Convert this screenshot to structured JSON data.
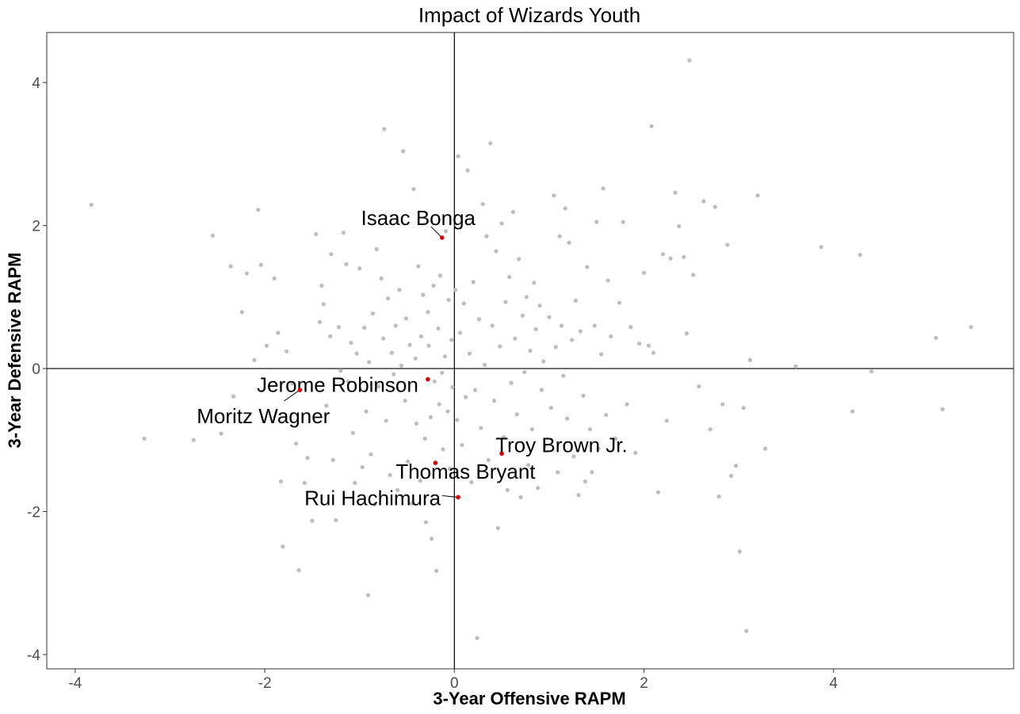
{
  "chart_data": {
    "type": "scatter",
    "title": "Impact of Wizards Youth",
    "xlabel": "3-Year Offensive RAPM",
    "ylabel": "3-Year Defensive RAPM",
    "xlim": [
      -4.3,
      5.9
    ],
    "ylim": [
      -4.2,
      4.7
    ],
    "x_ticks": [
      -4,
      -2,
      0,
      2,
      4
    ],
    "y_ticks": [
      -4,
      -2,
      0,
      2,
      4
    ],
    "x_tick_labels": [
      "-4",
      "-2",
      "0",
      "2",
      "4"
    ],
    "y_tick_labels": [
      "-4",
      "-2",
      "0",
      "2",
      "4"
    ],
    "grid": false,
    "reference_lines": {
      "x": 0,
      "y": 0
    },
    "colors": {
      "background_points": "#bdbdbd",
      "highlight_points": "#e00000",
      "axes": "#000000"
    },
    "highlighted": [
      {
        "name": "Isaac Bonga",
        "x": -0.13,
        "y": 1.83
      },
      {
        "name": "Jerome Robinson",
        "x": -0.28,
        "y": -0.15
      },
      {
        "name": "Moritz Wagner",
        "x": -1.63,
        "y": -0.3
      },
      {
        "name": "Troy Brown Jr.",
        "x": 0.5,
        "y": -1.19
      },
      {
        "name": "Thomas Bryant",
        "x": -0.2,
        "y": -1.32
      },
      {
        "name": "Rui Hachimura",
        "x": 0.04,
        "y": -1.8
      }
    ],
    "points": [
      [
        -3.83,
        2.29
      ],
      [
        -3.27,
        -0.98
      ],
      [
        -2.75,
        -1.0
      ],
      [
        -2.55,
        1.86
      ],
      [
        -2.46,
        -0.91
      ],
      [
        -2.36,
        1.43
      ],
      [
        -2.33,
        -0.39
      ],
      [
        -2.24,
        0.79
      ],
      [
        -2.19,
        1.33
      ],
      [
        -2.11,
        0.12
      ],
      [
        -2.07,
        2.22
      ],
      [
        -2.04,
        1.45
      ],
      [
        -1.98,
        0.32
      ],
      [
        -1.9,
        1.26
      ],
      [
        -1.86,
        0.5
      ],
      [
        -1.83,
        -1.58
      ],
      [
        -1.81,
        -2.49
      ],
      [
        -1.77,
        0.24
      ],
      [
        -1.71,
        -0.21
      ],
      [
        -1.67,
        -1.05
      ],
      [
        -1.64,
        -2.82
      ],
      [
        -1.58,
        -1.6
      ],
      [
        -1.55,
        -1.25
      ],
      [
        -1.5,
        -2.13
      ],
      [
        -1.46,
        1.88
      ],
      [
        -1.42,
        0.65
      ],
      [
        -1.4,
        1.16
      ],
      [
        -1.38,
        0.9
      ],
      [
        -1.35,
        -0.52
      ],
      [
        -1.31,
        0.45
      ],
      [
        -1.3,
        1.6
      ],
      [
        -1.28,
        -1.28
      ],
      [
        -1.25,
        -2.12
      ],
      [
        -1.22,
        0.58
      ],
      [
        -1.2,
        -0.03
      ],
      [
        -1.17,
        1.9
      ],
      [
        -1.14,
        1.46
      ],
      [
        -1.12,
        -0.18
      ],
      [
        -1.09,
        0.36
      ],
      [
        -1.07,
        -0.9
      ],
      [
        -1.05,
        -1.6
      ],
      [
        -1.03,
        0.21
      ],
      [
        -1.0,
        1.4
      ],
      [
        -0.97,
        -1.38
      ],
      [
        -0.95,
        0.57
      ],
      [
        -0.93,
        -0.6
      ],
      [
        -0.91,
        -3.17
      ],
      [
        -0.9,
        0.09
      ],
      [
        -0.88,
        -1.2
      ],
      [
        -0.86,
        0.77
      ],
      [
        -0.84,
        -1.9
      ],
      [
        -0.82,
        1.67
      ],
      [
        -0.8,
        -0.25
      ],
      [
        -0.77,
        1.26
      ],
      [
        -0.75,
        0.42
      ],
      [
        -0.74,
        3.35
      ],
      [
        -0.72,
        -0.73
      ],
      [
        -0.7,
        0.98
      ],
      [
        -0.68,
        -1.49
      ],
      [
        -0.66,
        0.22
      ],
      [
        -0.64,
        -0.08
      ],
      [
        -0.62,
        0.6
      ],
      [
        -0.6,
        -1.7
      ],
      [
        -0.58,
        1.1
      ],
      [
        -0.56,
        0.04
      ],
      [
        -0.54,
        3.04
      ],
      [
        -0.52,
        -0.45
      ],
      [
        -0.51,
        0.7
      ],
      [
        -0.49,
        -1.3
      ],
      [
        -0.47,
        0.33
      ],
      [
        -0.45,
        -1.89
      ],
      [
        -0.43,
        2.51
      ],
      [
        -0.41,
        0.14
      ],
      [
        -0.4,
        -0.77
      ],
      [
        -0.38,
        1.43
      ],
      [
        -0.36,
        -1.57
      ],
      [
        -0.35,
        0.45
      ],
      [
        -0.33,
        1.03
      ],
      [
        -0.31,
        -0.98
      ],
      [
        -0.3,
        -2.15
      ],
      [
        -0.28,
        0.79
      ],
      [
        -0.27,
        0.32
      ],
      [
        -0.25,
        -0.68
      ],
      [
        -0.24,
        -2.38
      ],
      [
        -0.22,
        1.16
      ],
      [
        -0.21,
        -0.18
      ],
      [
        -0.19,
        -2.83
      ],
      [
        -0.17,
        0.56
      ],
      [
        -0.16,
        -0.5
      ],
      [
        -0.15,
        1.3
      ],
      [
        -0.13,
        -0.06
      ],
      [
        -0.12,
        -1.13
      ],
      [
        -0.1,
        0.17
      ],
      [
        -0.09,
        1.92
      ],
      [
        -0.07,
        -0.6
      ],
      [
        -0.06,
        0.96
      ],
      [
        -0.05,
        -1.4
      ],
      [
        -0.03,
        0.4
      ],
      [
        -0.02,
        -0.26
      ],
      [
        0.01,
        1.1
      ],
      [
        0.03,
        -0.72
      ],
      [
        0.04,
        2.97
      ],
      [
        0.06,
        0.5
      ],
      [
        0.08,
        -1.07
      ],
      [
        0.1,
        0.91
      ],
      [
        0.12,
        -0.4
      ],
      [
        0.14,
        2.77
      ],
      [
        0.16,
        0.21
      ],
      [
        0.18,
        -1.59
      ],
      [
        0.2,
        1.21
      ],
      [
        0.22,
        -0.3
      ],
      [
        0.24,
        -3.77
      ],
      [
        0.26,
        0.69
      ],
      [
        0.28,
        -0.83
      ],
      [
        0.3,
        2.3
      ],
      [
        0.32,
        0.05
      ],
      [
        0.34,
        1.85
      ],
      [
        0.36,
        -1.28
      ],
      [
        0.38,
        3.15
      ],
      [
        0.4,
        0.6
      ],
      [
        0.42,
        -0.45
      ],
      [
        0.44,
        1.64
      ],
      [
        0.46,
        -2.23
      ],
      [
        0.48,
        0.31
      ],
      [
        0.5,
        2.03
      ],
      [
        0.52,
        -0.96
      ],
      [
        0.54,
        0.93
      ],
      [
        0.56,
        -1.7
      ],
      [
        0.58,
        1.28
      ],
      [
        0.6,
        -0.2
      ],
      [
        0.62,
        2.19
      ],
      [
        0.64,
        0.42
      ],
      [
        0.66,
        -0.64
      ],
      [
        0.68,
        1.53
      ],
      [
        0.7,
        -1.8
      ],
      [
        0.72,
        0.74
      ],
      [
        0.74,
        -0.05
      ],
      [
        0.76,
        1.0
      ],
      [
        0.78,
        -1.35
      ],
      [
        0.8,
        0.25
      ],
      [
        0.82,
        -0.85
      ],
      [
        0.84,
        1.2
      ],
      [
        0.86,
        0.55
      ],
      [
        0.88,
        -1.67
      ],
      [
        0.9,
        0.88
      ],
      [
        0.92,
        -0.3
      ],
      [
        0.94,
        0.1
      ],
      [
        0.96,
        -1.08
      ],
      [
        1.0,
        0.72
      ],
      [
        1.02,
        -0.55
      ],
      [
        1.05,
        2.42
      ],
      [
        1.07,
        0.3
      ],
      [
        1.09,
        -1.45
      ],
      [
        1.11,
        1.85
      ],
      [
        1.13,
        0.6
      ],
      [
        1.15,
        -0.1
      ],
      [
        1.17,
        2.24
      ],
      [
        1.19,
        -0.7
      ],
      [
        1.21,
        1.76
      ],
      [
        1.24,
        0.4
      ],
      [
        1.26,
        -1.23
      ],
      [
        1.28,
        0.95
      ],
      [
        1.31,
        -1.77
      ],
      [
        1.33,
        0.52
      ],
      [
        1.36,
        -0.38
      ],
      [
        1.38,
        -1.58
      ],
      [
        1.4,
        1.42
      ],
      [
        1.43,
        -0.85
      ],
      [
        1.45,
        -1.45
      ],
      [
        1.48,
        0.6
      ],
      [
        1.5,
        2.05
      ],
      [
        1.52,
        -1.12
      ],
      [
        1.55,
        0.2
      ],
      [
        1.57,
        2.52
      ],
      [
        1.6,
        -0.65
      ],
      [
        1.62,
        1.23
      ],
      [
        1.65,
        0.45
      ],
      [
        1.7,
        -0.98
      ],
      [
        1.74,
        0.92
      ],
      [
        1.78,
        2.05
      ],
      [
        1.82,
        -0.5
      ],
      [
        1.86,
        0.58
      ],
      [
        1.91,
        -1.18
      ],
      [
        1.95,
        0.35
      ],
      [
        2.0,
        1.34
      ],
      [
        2.05,
        0.32
      ],
      [
        2.08,
        3.39
      ],
      [
        2.1,
        0.22
      ],
      [
        2.15,
        -1.73
      ],
      [
        2.2,
        1.6
      ],
      [
        2.24,
        -0.73
      ],
      [
        2.28,
        1.54
      ],
      [
        2.33,
        2.46
      ],
      [
        2.37,
        1.99
      ],
      [
        2.42,
        1.56
      ],
      [
        2.45,
        0.49
      ],
      [
        2.48,
        4.31
      ],
      [
        2.52,
        1.31
      ],
      [
        2.58,
        -0.25
      ],
      [
        2.63,
        2.34
      ],
      [
        2.7,
        -0.85
      ],
      [
        2.75,
        2.26
      ],
      [
        2.79,
        -1.79
      ],
      [
        2.83,
        -0.5
      ],
      [
        2.88,
        1.73
      ],
      [
        2.92,
        -1.5
      ],
      [
        2.97,
        -1.36
      ],
      [
        3.01,
        -2.56
      ],
      [
        3.05,
        -0.55
      ],
      [
        3.08,
        -3.67
      ],
      [
        3.12,
        0.12
      ],
      [
        3.2,
        2.42
      ],
      [
        3.28,
        -1.12
      ],
      [
        3.6,
        0.03
      ],
      [
        3.87,
        1.7
      ],
      [
        4.2,
        -0.6
      ],
      [
        4.28,
        1.59
      ],
      [
        4.4,
        -0.04
      ],
      [
        5.08,
        0.43
      ],
      [
        5.15,
        -0.57
      ],
      [
        5.45,
        0.58
      ]
    ]
  }
}
